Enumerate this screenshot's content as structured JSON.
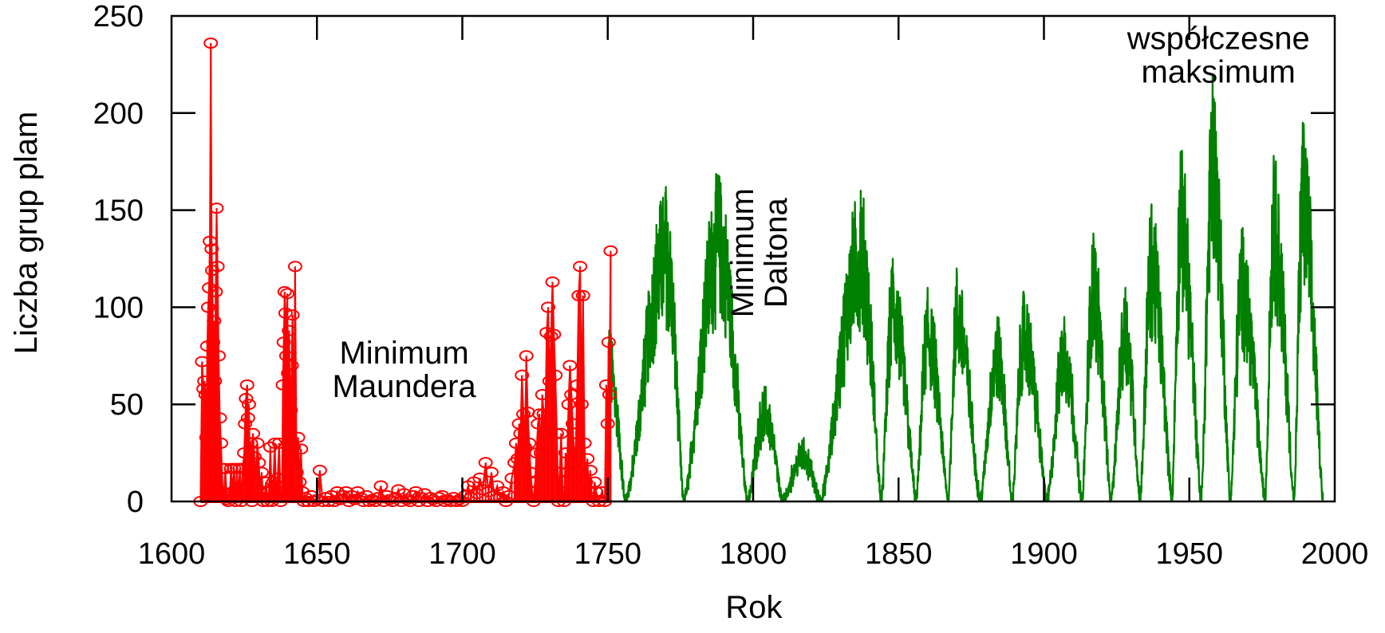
{
  "chart_data": {
    "type": "line",
    "title": "",
    "xlabel": "Rok",
    "ylabel": "Liczba grup plam",
    "xlim": [
      1600,
      2000
    ],
    "ylim": [
      0,
      250
    ],
    "xticks": [
      1600,
      1650,
      1700,
      1750,
      1800,
      1850,
      1900,
      1950,
      2000
    ],
    "yticks": [
      0,
      50,
      100,
      150,
      200,
      250
    ],
    "grid": false,
    "legend": "none",
    "colors": {
      "early": "#ff0000",
      "late": "#008000"
    },
    "annotations": [
      {
        "id": "maunder",
        "lines": [
          "Minimum",
          "Maundera"
        ],
        "x": 1680,
        "y": 71,
        "rotated": false
      },
      {
        "id": "dalton",
        "lines": [
          "Minimum",
          "Daltona"
        ],
        "x": 1800,
        "y": 128,
        "rotated": true
      },
      {
        "id": "modern",
        "lines": [
          "współczesne",
          "maksimum"
        ],
        "x": 1960,
        "y": 233,
        "rotated": false
      }
    ],
    "series": [
      {
        "style": "markers-lines",
        "color": "#ff0000",
        "points": [
          [
            1610,
            0
          ],
          [
            1610.5,
            72
          ],
          [
            1611,
            58
          ],
          [
            1611.3,
            62
          ],
          [
            1611.7,
            55
          ],
          [
            1612,
            33
          ],
          [
            1612.3,
            80
          ],
          [
            1612.6,
            100
          ],
          [
            1612.9,
            110
          ],
          [
            1613.2,
            134
          ],
          [
            1613.5,
            236
          ],
          [
            1613.8,
            130
          ],
          [
            1614,
            119
          ],
          [
            1614.3,
            82
          ],
          [
            1614.6,
            93
          ],
          [
            1614.9,
            62
          ],
          [
            1615.2,
            108
          ],
          [
            1615.5,
            151
          ],
          [
            1615.8,
            121
          ],
          [
            1616.2,
            75
          ],
          [
            1616.6,
            43
          ],
          [
            1617,
            30
          ],
          [
            1617.3,
            17
          ],
          [
            1617.6,
            5
          ],
          [
            1618,
            3
          ],
          [
            1618.5,
            17
          ],
          [
            1619,
            1
          ],
          [
            1619.5,
            0
          ],
          [
            1620,
            4
          ],
          [
            1620.5,
            17
          ],
          [
            1621,
            5
          ],
          [
            1621.5,
            17
          ],
          [
            1622,
            0
          ],
          [
            1622.5,
            17
          ],
          [
            1623,
            2
          ],
          [
            1623.5,
            17
          ],
          [
            1624,
            0
          ],
          [
            1624.5,
            17
          ],
          [
            1625,
            25
          ],
          [
            1625.3,
            40
          ],
          [
            1625.6,
            53
          ],
          [
            1626,
            60
          ],
          [
            1626.3,
            43
          ],
          [
            1626.6,
            50
          ],
          [
            1627,
            15
          ],
          [
            1627.3,
            30
          ],
          [
            1627.6,
            0
          ],
          [
            1628,
            35
          ],
          [
            1628.5,
            23
          ],
          [
            1629,
            10
          ],
          [
            1629.5,
            30
          ],
          [
            1630,
            20
          ],
          [
            1630.5,
            5
          ],
          [
            1631,
            15
          ],
          [
            1631.5,
            0
          ],
          [
            1632,
            2
          ],
          [
            1632.5,
            10
          ],
          [
            1633,
            0
          ],
          [
            1633.5,
            5
          ],
          [
            1634,
            28
          ],
          [
            1634.5,
            0
          ],
          [
            1635,
            10
          ],
          [
            1635.5,
            30
          ],
          [
            1636,
            2
          ],
          [
            1636.5,
            12
          ],
          [
            1637,
            30
          ],
          [
            1637.5,
            0
          ],
          [
            1638,
            5
          ],
          [
            1638.3,
            60
          ],
          [
            1638.6,
            82
          ],
          [
            1638.9,
            108
          ],
          [
            1639.2,
            97
          ],
          [
            1639.5,
            75
          ],
          [
            1639.8,
            107
          ],
          [
            1640.1,
            66
          ],
          [
            1640.4,
            88
          ],
          [
            1640.7,
            53
          ],
          [
            1641,
            47
          ],
          [
            1641.3,
            70
          ],
          [
            1641.6,
            96
          ],
          [
            1642,
            28
          ],
          [
            1642.5,
            121
          ],
          [
            1643,
            15
          ],
          [
            1643.5,
            33
          ],
          [
            1644,
            10
          ],
          [
            1644.5,
            27
          ],
          [
            1645,
            5
          ],
          [
            1645.5,
            0
          ],
          [
            1646,
            2
          ],
          [
            1647,
            0
          ],
          [
            1648,
            3
          ],
          [
            1649,
            0
          ],
          [
            1650,
            1
          ],
          [
            1651,
            16
          ],
          [
            1652,
            0
          ],
          [
            1653,
            2
          ],
          [
            1654,
            0
          ],
          [
            1655,
            3
          ],
          [
            1656,
            0
          ],
          [
            1657,
            5
          ],
          [
            1658,
            1
          ],
          [
            1659,
            3
          ],
          [
            1660,
            5
          ],
          [
            1661,
            0
          ],
          [
            1662,
            3
          ],
          [
            1663,
            1
          ],
          [
            1664,
            5
          ],
          [
            1665,
            2
          ],
          [
            1666,
            0
          ],
          [
            1667,
            3
          ],
          [
            1668,
            0
          ],
          [
            1669,
            1
          ],
          [
            1670,
            0
          ],
          [
            1671,
            2
          ],
          [
            1672,
            8
          ],
          [
            1673,
            0
          ],
          [
            1674,
            3
          ],
          [
            1675,
            1
          ],
          [
            1676,
            0
          ],
          [
            1677,
            2
          ],
          [
            1678,
            6
          ],
          [
            1679,
            0
          ],
          [
            1680,
            4
          ],
          [
            1681,
            1
          ],
          [
            1682,
            0
          ],
          [
            1683,
            3
          ],
          [
            1684,
            5
          ],
          [
            1685,
            0
          ],
          [
            1686,
            2
          ],
          [
            1687,
            4
          ],
          [
            1688,
            0
          ],
          [
            1689,
            2
          ],
          [
            1690,
            1
          ],
          [
            1691,
            0
          ],
          [
            1692,
            2
          ],
          [
            1693,
            3
          ],
          [
            1694,
            0
          ],
          [
            1695,
            1
          ],
          [
            1696,
            0
          ],
          [
            1697,
            2
          ],
          [
            1698,
            0
          ],
          [
            1699,
            1
          ],
          [
            1700,
            0
          ],
          [
            1701,
            3
          ],
          [
            1702,
            8
          ],
          [
            1703,
            2
          ],
          [
            1704,
            10
          ],
          [
            1705,
            4
          ],
          [
            1706,
            12
          ],
          [
            1707,
            6
          ],
          [
            1708,
            20
          ],
          [
            1709,
            5
          ],
          [
            1710,
            15
          ],
          [
            1711,
            3
          ],
          [
            1712,
            8
          ],
          [
            1713,
            2
          ],
          [
            1714,
            5
          ],
          [
            1715,
            0
          ],
          [
            1716,
            3
          ],
          [
            1717,
            12
          ],
          [
            1718,
            20
          ],
          [
            1718.5,
            30
          ],
          [
            1719,
            22
          ],
          [
            1719.5,
            40
          ],
          [
            1720,
            35
          ],
          [
            1720.5,
            65
          ],
          [
            1721,
            45
          ],
          [
            1721.5,
            28
          ],
          [
            1722,
            75
          ],
          [
            1722.5,
            46
          ],
          [
            1723,
            30
          ],
          [
            1723.5,
            15
          ],
          [
            1724,
            5
          ],
          [
            1724.5,
            0
          ],
          [
            1725,
            10
          ],
          [
            1725.5,
            25
          ],
          [
            1726,
            40
          ],
          [
            1726.5,
            45
          ],
          [
            1727,
            25
          ],
          [
            1727.5,
            55
          ],
          [
            1728,
            45
          ],
          [
            1728.5,
            35
          ],
          [
            1729,
            87
          ],
          [
            1729.5,
            100
          ],
          [
            1730,
            62
          ],
          [
            1730.5,
            85
          ],
          [
            1731,
            113
          ],
          [
            1731.5,
            86
          ],
          [
            1732,
            65
          ],
          [
            1732.5,
            35
          ],
          [
            1733,
            0
          ],
          [
            1733.5,
            15
          ],
          [
            1734,
            35
          ],
          [
            1734.5,
            5
          ],
          [
            1735,
            0
          ],
          [
            1735.5,
            25
          ],
          [
            1736,
            15
          ],
          [
            1736.5,
            50
          ],
          [
            1737,
            70
          ],
          [
            1737.5,
            55
          ],
          [
            1738,
            40
          ],
          [
            1738.5,
            20
          ],
          [
            1739,
            30
          ],
          [
            1739.5,
            60
          ],
          [
            1740,
            106
          ],
          [
            1740.5,
            121
          ],
          [
            1741,
            50
          ],
          [
            1741.5,
            106
          ],
          [
            1742,
            30
          ],
          [
            1742.5,
            10
          ],
          [
            1743,
            22
          ],
          [
            1743.5,
            5
          ],
          [
            1744,
            16
          ],
          [
            1744.5,
            2
          ],
          [
            1745,
            0
          ],
          [
            1745.5,
            10
          ],
          [
            1746,
            5
          ],
          [
            1747,
            0
          ],
          [
            1748,
            5
          ],
          [
            1749,
            0
          ],
          [
            1749.5,
            60
          ],
          [
            1750,
            40
          ],
          [
            1750.3,
            82
          ],
          [
            1750.6,
            55
          ],
          [
            1751,
            129
          ]
        ]
      },
      {
        "style": "line",
        "color": "#008000",
        "cycles": [
          {
            "min_year": 1750,
            "max_year": 1750.5,
            "peak": 88,
            "next_min": 1756
          },
          {
            "min_year": 1756,
            "max_year": 1770,
            "peak": 162,
            "next_min": 1776
          },
          {
            "min_year": 1776,
            "max_year": 1788,
            "peak": 168,
            "next_min": 1798
          },
          {
            "min_year": 1798,
            "max_year": 1804,
            "peak": 58,
            "next_min": 1810
          },
          {
            "min_year": 1810,
            "max_year": 1817,
            "peak": 30,
            "next_min": 1823
          },
          {
            "min_year": 1823,
            "max_year": 1837,
            "peak": 160,
            "next_min": 1844
          },
          {
            "min_year": 1844,
            "max_year": 1848,
            "peak": 125,
            "next_min": 1856
          },
          {
            "min_year": 1856,
            "max_year": 1860,
            "peak": 110,
            "next_min": 1867
          },
          {
            "min_year": 1867,
            "max_year": 1870,
            "peak": 120,
            "next_min": 1878
          },
          {
            "min_year": 1878,
            "max_year": 1884,
            "peak": 95,
            "next_min": 1889
          },
          {
            "min_year": 1889,
            "max_year": 1893,
            "peak": 108,
            "next_min": 1901
          },
          {
            "min_year": 1901,
            "max_year": 1907,
            "peak": 95,
            "next_min": 1913
          },
          {
            "min_year": 1913,
            "max_year": 1917,
            "peak": 138,
            "next_min": 1923
          },
          {
            "min_year": 1923,
            "max_year": 1928,
            "peak": 110,
            "next_min": 1933
          },
          {
            "min_year": 1933,
            "max_year": 1937,
            "peak": 153,
            "next_min": 1944
          },
          {
            "min_year": 1944,
            "max_year": 1947,
            "peak": 180,
            "next_min": 1954
          },
          {
            "min_year": 1954,
            "max_year": 1958,
            "peak": 220,
            "next_min": 1964
          },
          {
            "min_year": 1964,
            "max_year": 1968,
            "peak": 140,
            "next_min": 1976
          },
          {
            "min_year": 1976,
            "max_year": 1979,
            "peak": 178,
            "next_min": 1986
          },
          {
            "min_year": 1986,
            "max_year": 1989,
            "peak": 195,
            "next_min": 1996
          }
        ]
      }
    ]
  }
}
